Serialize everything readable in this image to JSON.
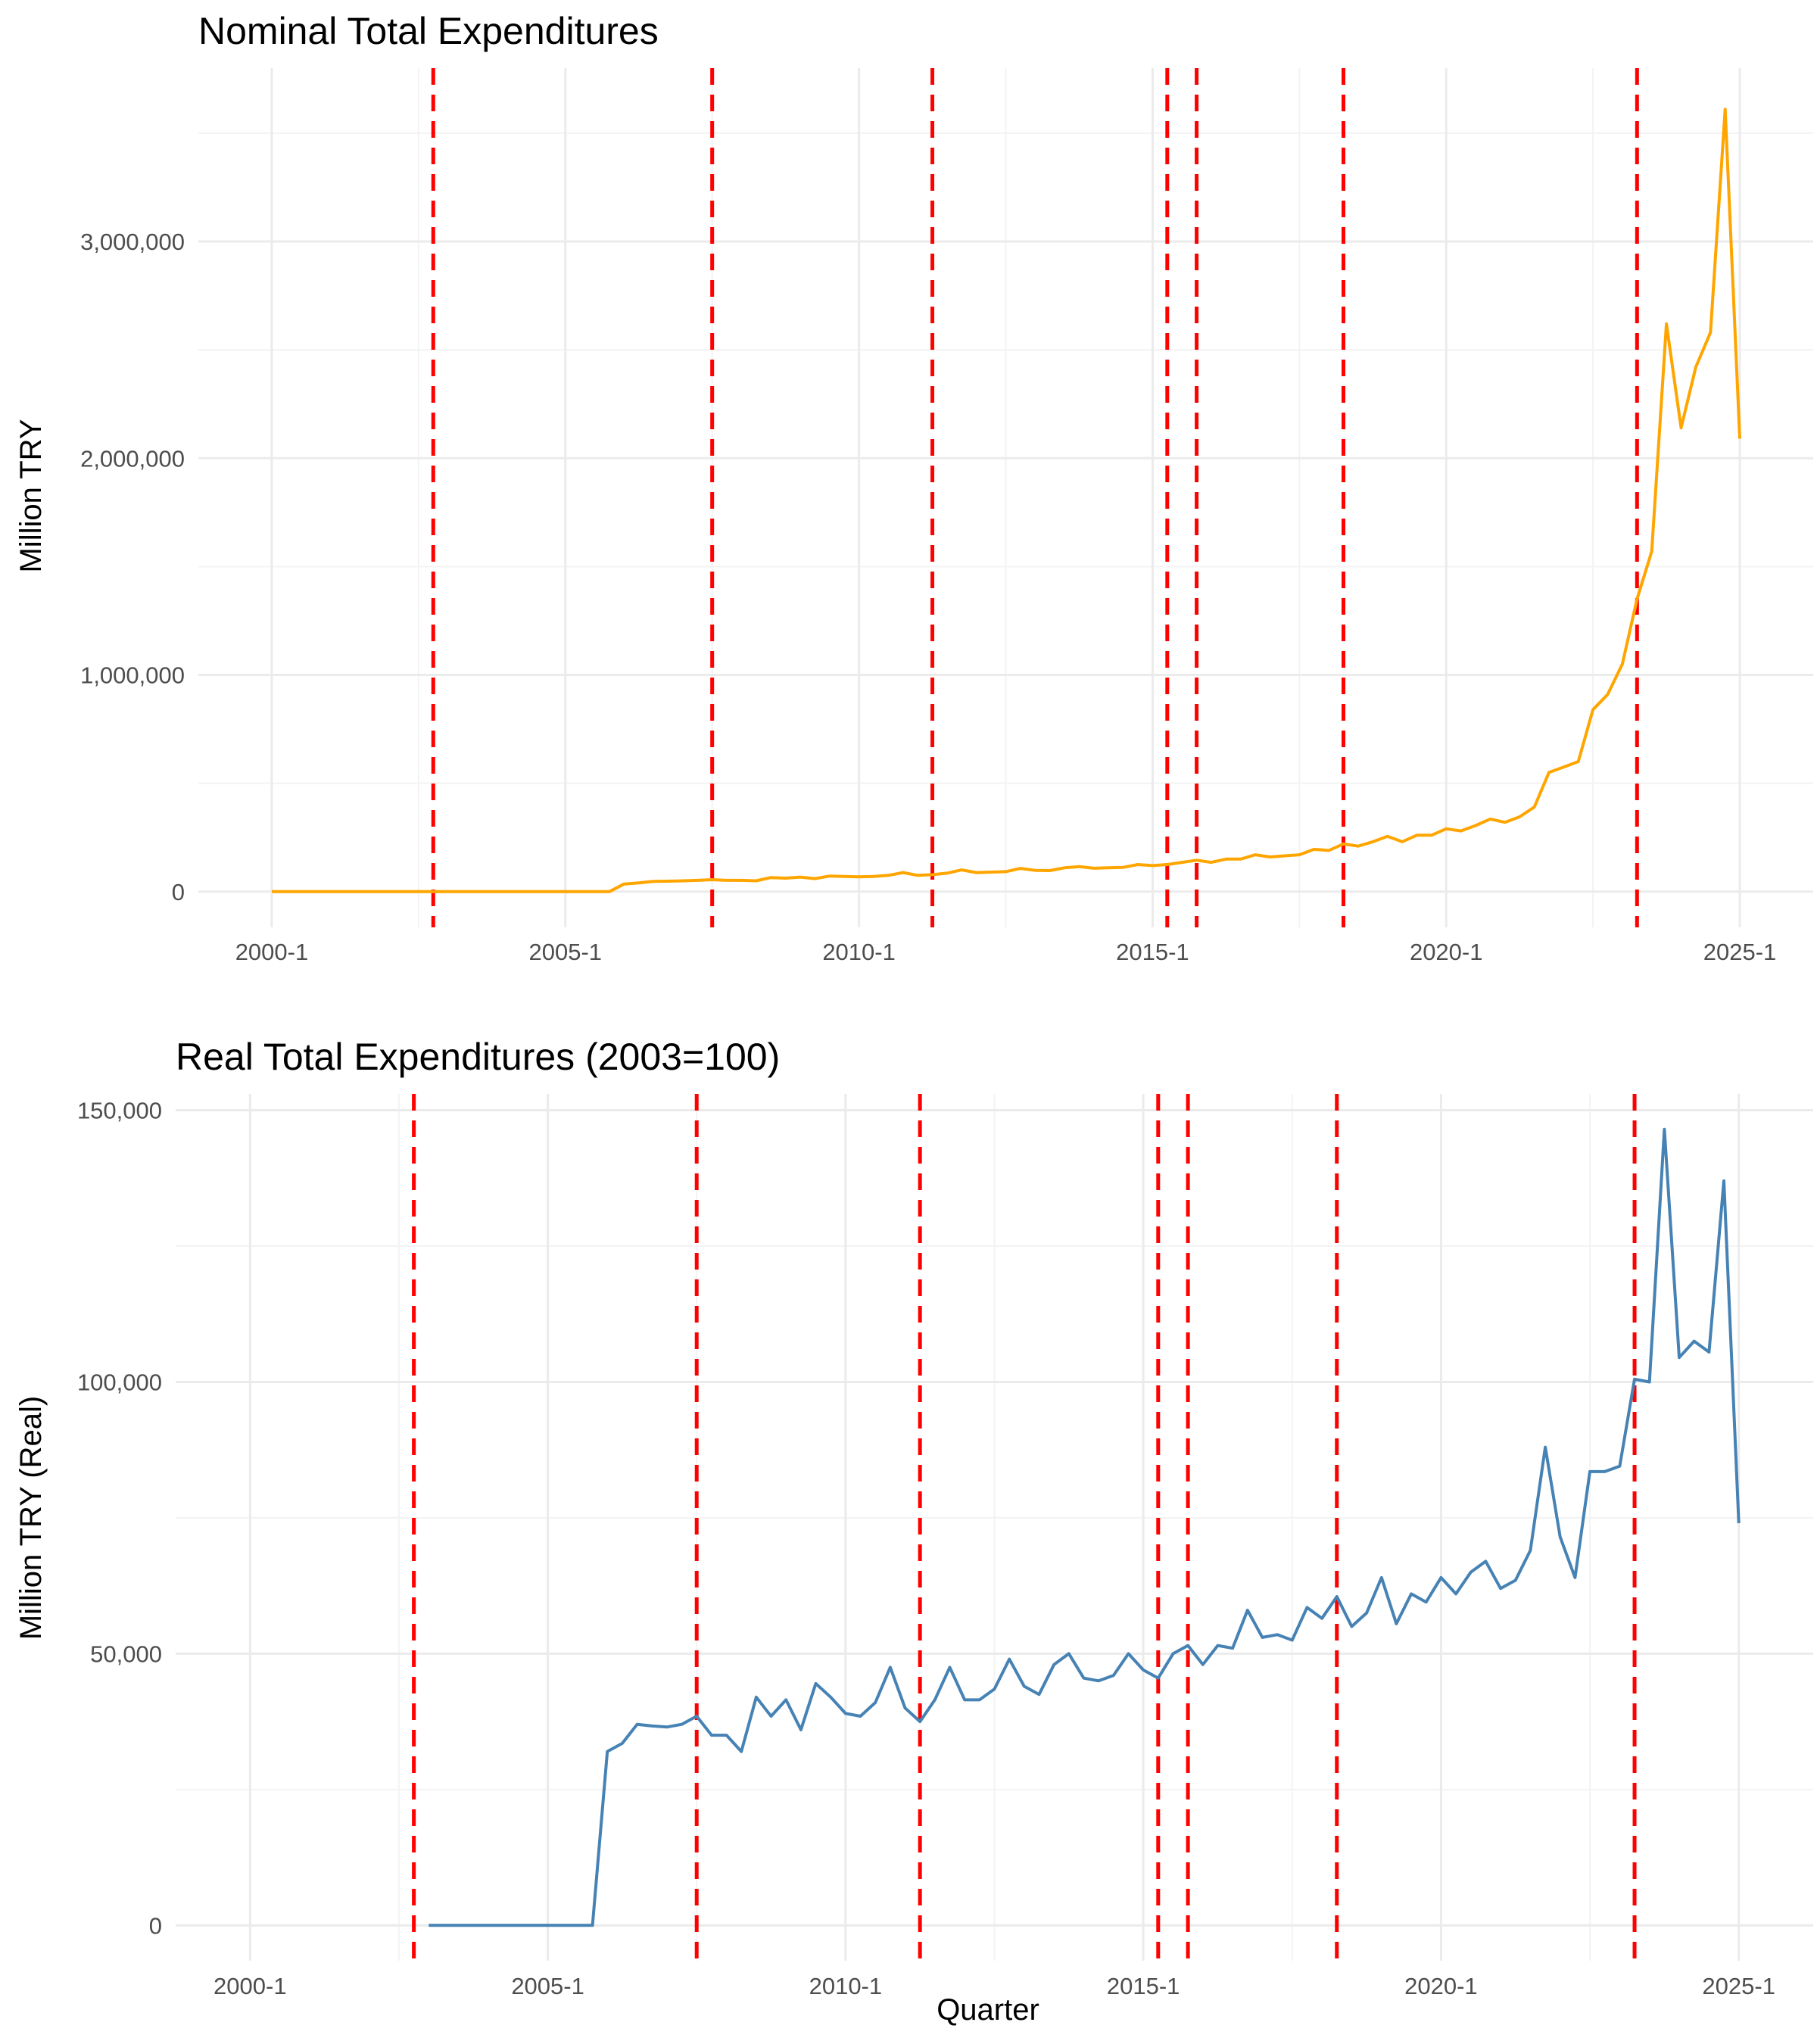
{
  "chart_data": [
    {
      "type": "line",
      "title": "Nominal Total Expenditures",
      "xlabel": "",
      "ylabel": "Million TRY",
      "x_tick_labels": [
        "2000-1",
        "2005-1",
        "2010-1",
        "2015-1",
        "2020-1",
        "2025-1"
      ],
      "y_ticks": [
        0,
        1000000,
        2000000,
        3000000
      ],
      "y_tick_labels": [
        "0",
        "1,000,000",
        "2,000,000",
        "3,000,000"
      ],
      "xlim": [
        1998.75,
        2026.25
      ],
      "ylim": [
        -165000,
        3800000
      ],
      "grid": true,
      "line_color": "#FFA500",
      "vline_color": "#FF0000",
      "vlines": [
        "2002-4",
        "2007-3",
        "2011-2",
        "2015-2",
        "2015-4",
        "2018-2",
        "2023-2"
      ],
      "series": [
        {
          "x": [
            "2000-1",
            "2000-2",
            "2000-3",
            "2000-4",
            "2001-1",
            "2001-2",
            "2001-3",
            "2001-4",
            "2002-1",
            "2002-2",
            "2002-3",
            "2002-4",
            "2003-1",
            "2003-2",
            "2003-3",
            "2003-4",
            "2004-1",
            "2004-2",
            "2004-3",
            "2004-4",
            "2005-1",
            "2005-2",
            "2005-3",
            "2005-4",
            "2006-1",
            "2006-2",
            "2006-3",
            "2006-4",
            "2007-1",
            "2007-2",
            "2007-3",
            "2007-4",
            "2008-1",
            "2008-2",
            "2008-3",
            "2008-4",
            "2009-1",
            "2009-2",
            "2009-3",
            "2009-4",
            "2010-1",
            "2010-2",
            "2010-3",
            "2010-4",
            "2011-1",
            "2011-2",
            "2011-3",
            "2011-4",
            "2012-1",
            "2012-2",
            "2012-3",
            "2012-4",
            "2013-1",
            "2013-2",
            "2013-3",
            "2013-4",
            "2014-1",
            "2014-2",
            "2014-3",
            "2014-4",
            "2015-1",
            "2015-2",
            "2015-3",
            "2015-4",
            "2016-1",
            "2016-2",
            "2016-3",
            "2016-4",
            "2017-1",
            "2017-2",
            "2017-3",
            "2017-4",
            "2018-1",
            "2018-2",
            "2018-3",
            "2018-4",
            "2019-1",
            "2019-2",
            "2019-3",
            "2019-4",
            "2020-1",
            "2020-2",
            "2020-3",
            "2020-4",
            "2021-1",
            "2021-2",
            "2021-3",
            "2021-4",
            "2022-1",
            "2022-2",
            "2022-3",
            "2022-4",
            "2023-1",
            "2023-2",
            "2023-3",
            "2023-4",
            "2024-1",
            "2024-2",
            "2024-3",
            "2024-4",
            "2025-1"
          ],
          "y": [
            0,
            0,
            0,
            0,
            0,
            0,
            0,
            0,
            0,
            0,
            0,
            0,
            0,
            0,
            0,
            0,
            0,
            0,
            0,
            0,
            0,
            0,
            0,
            0,
            35000,
            40000,
            47000,
            48000,
            50000,
            52000,
            55000,
            52000,
            52000,
            50000,
            65000,
            62000,
            67000,
            60000,
            72000,
            70000,
            68000,
            70000,
            75000,
            88000,
            75000,
            78000,
            85000,
            100000,
            88000,
            90000,
            92000,
            107000,
            98000,
            97000,
            110000,
            115000,
            108000,
            110000,
            112000,
            125000,
            120000,
            125000,
            135000,
            145000,
            135000,
            150000,
            150000,
            170000,
            160000,
            165000,
            170000,
            195000,
            190000,
            220000,
            210000,
            230000,
            255000,
            230000,
            260000,
            260000,
            290000,
            280000,
            305000,
            335000,
            320000,
            345000,
            390000,
            550000,
            575000,
            600000,
            840000,
            910000,
            1050000,
            1350000,
            1570000,
            2620000,
            2140000,
            2420000,
            2580000,
            3610000,
            2090000
          ]
        }
      ]
    },
    {
      "type": "line",
      "title": "Real Total Expenditures (2003=100)",
      "xlabel": "Quarter",
      "ylabel": "Million TRY (Real)",
      "x_tick_labels": [
        "2000-1",
        "2005-1",
        "2010-1",
        "2015-1",
        "2020-1",
        "2025-1"
      ],
      "y_ticks": [
        0,
        50000,
        100000,
        150000
      ],
      "y_tick_labels": [
        "0",
        "50,000",
        "100,000",
        "150,000"
      ],
      "xlim": [
        1998.75,
        2026.25
      ],
      "ylim": [
        -6500,
        153000
      ],
      "grid": true,
      "line_color": "#4682B4",
      "vline_color": "#FF0000",
      "vlines": [
        "2002-4",
        "2007-3",
        "2011-2",
        "2015-2",
        "2015-4",
        "2018-2",
        "2023-2"
      ],
      "series": [
        {
          "x": [
            "2003-1",
            "2003-2",
            "2003-3",
            "2003-4",
            "2004-1",
            "2004-2",
            "2004-3",
            "2004-4",
            "2005-1",
            "2005-2",
            "2005-3",
            "2005-4",
            "2006-1",
            "2006-2",
            "2006-3",
            "2006-4",
            "2007-1",
            "2007-2",
            "2007-3",
            "2007-4",
            "2008-1",
            "2008-2",
            "2008-3",
            "2008-4",
            "2009-1",
            "2009-2",
            "2009-3",
            "2009-4",
            "2010-1",
            "2010-2",
            "2010-3",
            "2010-4",
            "2011-1",
            "2011-2",
            "2011-3",
            "2011-4",
            "2012-1",
            "2012-2",
            "2012-3",
            "2012-4",
            "2013-1",
            "2013-2",
            "2013-3",
            "2013-4",
            "2014-1",
            "2014-2",
            "2014-3",
            "2014-4",
            "2015-1",
            "2015-2",
            "2015-3",
            "2015-4",
            "2016-1",
            "2016-2",
            "2016-3",
            "2016-4",
            "2017-1",
            "2017-2",
            "2017-3",
            "2017-4",
            "2018-1",
            "2018-2",
            "2018-3",
            "2018-4",
            "2019-1",
            "2019-2",
            "2019-3",
            "2019-4",
            "2020-1",
            "2020-2",
            "2020-3",
            "2020-4",
            "2021-1",
            "2021-2",
            "2021-3",
            "2021-4",
            "2022-1",
            "2022-2",
            "2022-3",
            "2022-4",
            "2023-1",
            "2023-2",
            "2023-3",
            "2023-4",
            "2024-1",
            "2024-2",
            "2024-3",
            "2024-4",
            "2025-1"
          ],
          "y": [
            0,
            0,
            0,
            0,
            0,
            0,
            0,
            0,
            0,
            0,
            0,
            0,
            32000,
            33500,
            37000,
            36700,
            36500,
            37000,
            38500,
            35000,
            35000,
            32000,
            42000,
            38500,
            41500,
            36000,
            44500,
            42000,
            39000,
            38500,
            41000,
            47500,
            40000,
            37500,
            41500,
            47500,
            41500,
            41500,
            43500,
            49000,
            44000,
            42500,
            48000,
            50000,
            45500,
            45000,
            46000,
            50000,
            47000,
            45500,
            50000,
            51500,
            48000,
            51500,
            51000,
            58000,
            53000,
            53500,
            52500,
            58500,
            56500,
            60500,
            55000,
            57500,
            64000,
            55500,
            61000,
            59500,
            64000,
            61000,
            65000,
            67000,
            62000,
            63500,
            69000,
            88000,
            71500,
            64000,
            83500,
            83500,
            84500,
            100500,
            100000,
            146500,
            104500,
            107500,
            105500,
            137000,
            74000
          ]
        }
      ]
    }
  ]
}
